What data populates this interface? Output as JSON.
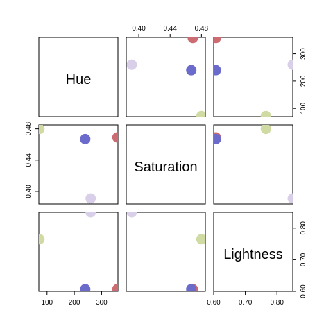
{
  "chart_data": {
    "type": "scatter",
    "kind": "pairs-matrix",
    "variables": [
      "Hue",
      "Saturation",
      "Lightness"
    ],
    "axes": {
      "Hue": {
        "range": [
          70,
          360
        ],
        "ticks": [
          100,
          200,
          300
        ],
        "tick_labels": [
          "100",
          "200",
          "300"
        ]
      },
      "Saturation": {
        "range": [
          0.384,
          0.485
        ],
        "ticks": [
          0.4,
          0.44,
          0.48
        ],
        "tick_labels": [
          "0.40",
          "0.44",
          "0.48"
        ]
      },
      "Lightness": {
        "range": [
          0.6,
          0.85
        ],
        "ticks": [
          0.6,
          0.7,
          0.8
        ],
        "tick_labels": [
          "0.60",
          "0.70",
          "0.80"
        ]
      }
    },
    "points": [
      {
        "Hue": 358,
        "Saturation": 0.469,
        "Lightness": 0.607,
        "color": "#cc6b72"
      },
      {
        "Hue": 240,
        "Saturation": 0.467,
        "Lightness": 0.607,
        "color": "#6b6bcc"
      },
      {
        "Hue": 72,
        "Saturation": 0.48,
        "Lightness": 0.765,
        "color": "#cfdba3"
      },
      {
        "Hue": 260,
        "Saturation": 0.391,
        "Lightness": 0.85,
        "color": "#d9cfe8"
      }
    ],
    "grid": false,
    "legend": "none"
  }
}
